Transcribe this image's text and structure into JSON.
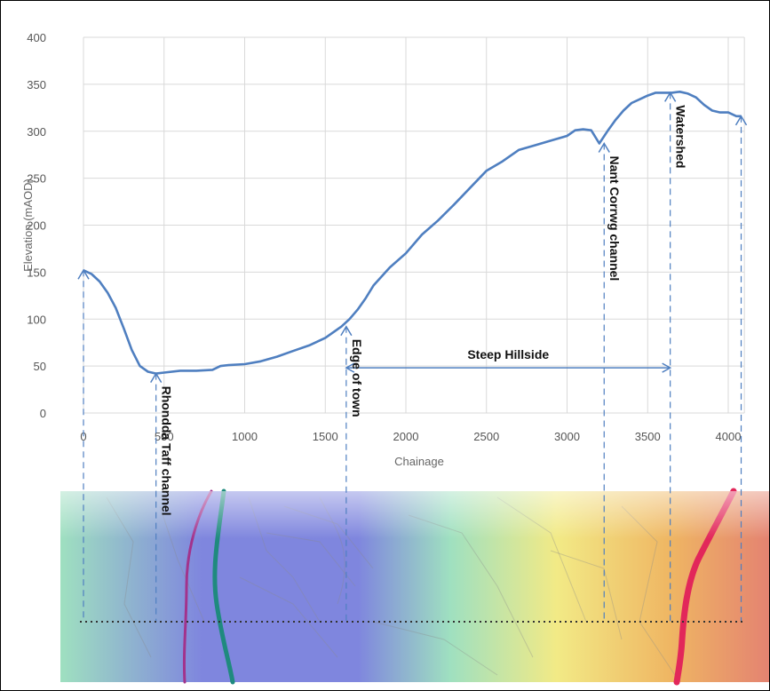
{
  "chart_data": {
    "type": "line",
    "title": "",
    "xlabel": "Chainage",
    "ylabel": "Elevation (mAOD)",
    "xlim": [
      0,
      4100
    ],
    "ylim": [
      0,
      400
    ],
    "x_ticks": [
      0,
      500,
      1000,
      1500,
      2000,
      2500,
      3000,
      3500,
      4000
    ],
    "y_ticks": [
      0,
      50,
      100,
      150,
      200,
      250,
      300,
      350,
      400
    ],
    "grid": true,
    "series": [
      {
        "color": "#4f7fc0",
        "x": [
          0,
          50,
          100,
          150,
          200,
          250,
          300,
          350,
          400,
          450,
          500,
          600,
          700,
          800,
          850,
          900,
          1000,
          1100,
          1200,
          1300,
          1400,
          1500,
          1600,
          1650,
          1700,
          1750,
          1800,
          1900,
          2000,
          2100,
          2200,
          2300,
          2400,
          2500,
          2600,
          2700,
          2800,
          2900,
          3000,
          3050,
          3100,
          3150,
          3200,
          3250,
          3300,
          3350,
          3400,
          3450,
          3500,
          3550,
          3600,
          3650,
          3700,
          3750,
          3800,
          3850,
          3900,
          3950,
          4000,
          4050,
          4080
        ],
        "y": [
          152,
          148,
          140,
          128,
          112,
          90,
          67,
          50,
          44,
          42,
          43,
          45,
          45,
          46,
          50,
          51,
          52,
          55,
          60,
          66,
          72,
          80,
          92,
          100,
          110,
          122,
          136,
          155,
          170,
          190,
          205,
          222,
          240,
          258,
          268,
          280,
          285,
          290,
          295,
          301,
          302,
          301,
          287,
          300,
          312,
          322,
          330,
          334,
          338,
          341,
          341,
          341,
          342,
          340,
          336,
          328,
          322,
          320,
          320,
          316,
          316
        ]
      }
    ],
    "markers": [
      {
        "label": "Rhondda Taff channel",
        "x": 450,
        "y": 42
      },
      {
        "label": "Edge of town",
        "x": 1630,
        "y": 92
      },
      {
        "label": "Nant Corrwg channel",
        "x": 3230,
        "y": 287
      },
      {
        "label": "Watershed",
        "x": 3640,
        "y": 341
      },
      {
        "label": "",
        "x": 0,
        "y": 152
      },
      {
        "label": "",
        "x": 4080,
        "y": 316
      }
    ],
    "range_annotation": {
      "label": "Steep Hillside",
      "x_start": 1630,
      "x_end": 3640,
      "y": 50
    }
  },
  "map": {
    "colors": {
      "blue": "#7f86de",
      "green": "#9fe0c0",
      "yellow": "#f2ea86",
      "orange": "#efb663",
      "red": "#e48371",
      "river_teal": "#1f8a7e",
      "river_purple": "#a2338c",
      "stream_red": "#e2275a"
    }
  }
}
